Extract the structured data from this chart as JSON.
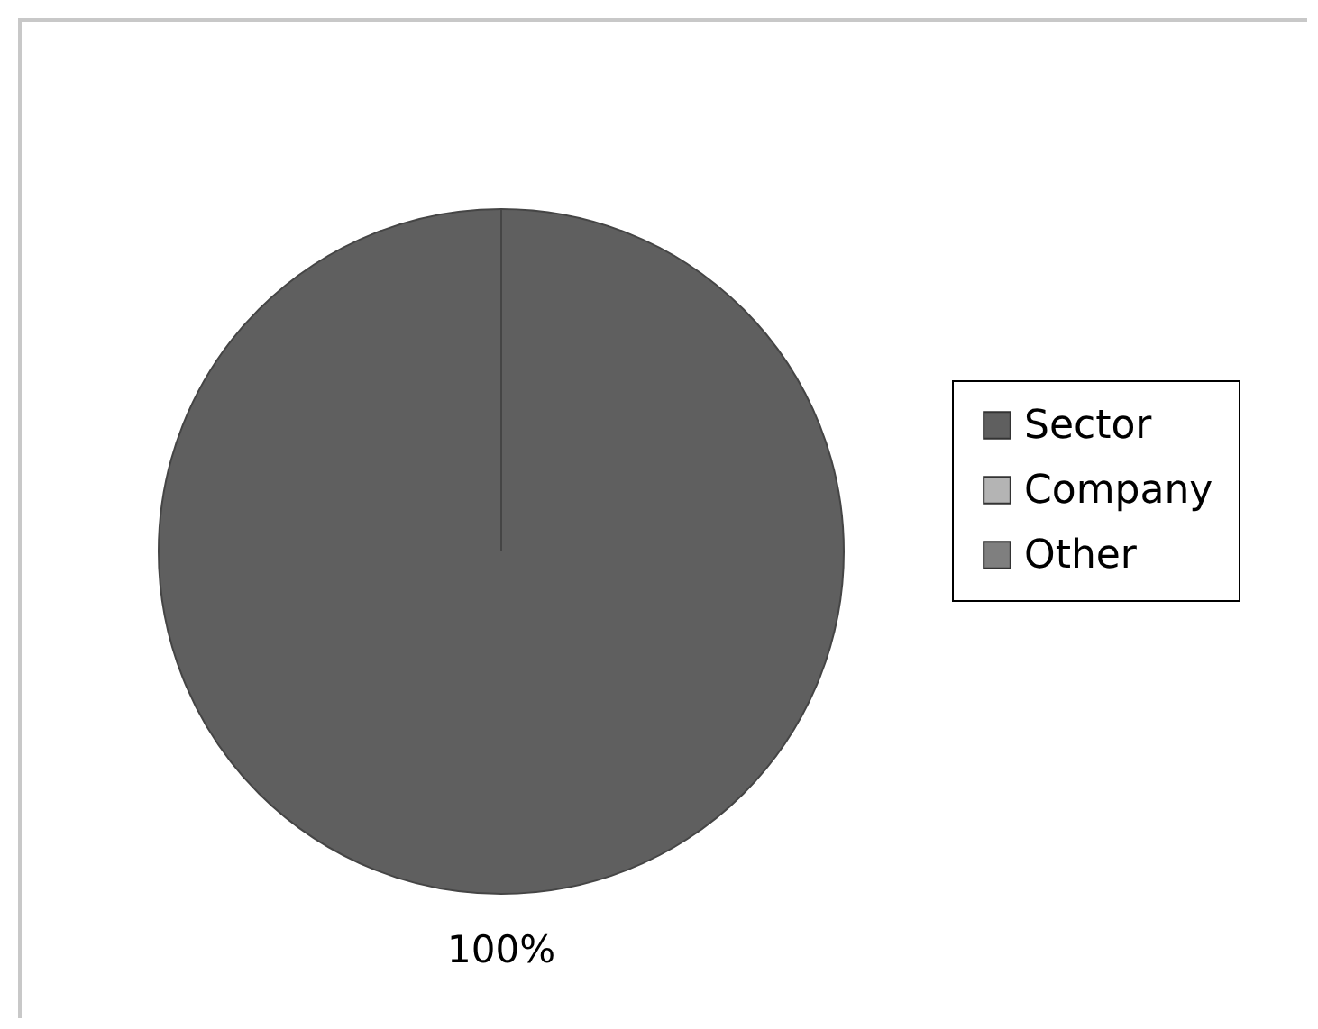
{
  "chart_data": {
    "type": "pie",
    "categories": [
      "Sector",
      "Company",
      "Other"
    ],
    "values": [
      100,
      0,
      0
    ],
    "colors": [
      "#5f5f5f",
      "#b4b4b4",
      "#7f7f7f"
    ],
    "value_labels": [
      "100%",
      null,
      null
    ],
    "legend": "right"
  }
}
